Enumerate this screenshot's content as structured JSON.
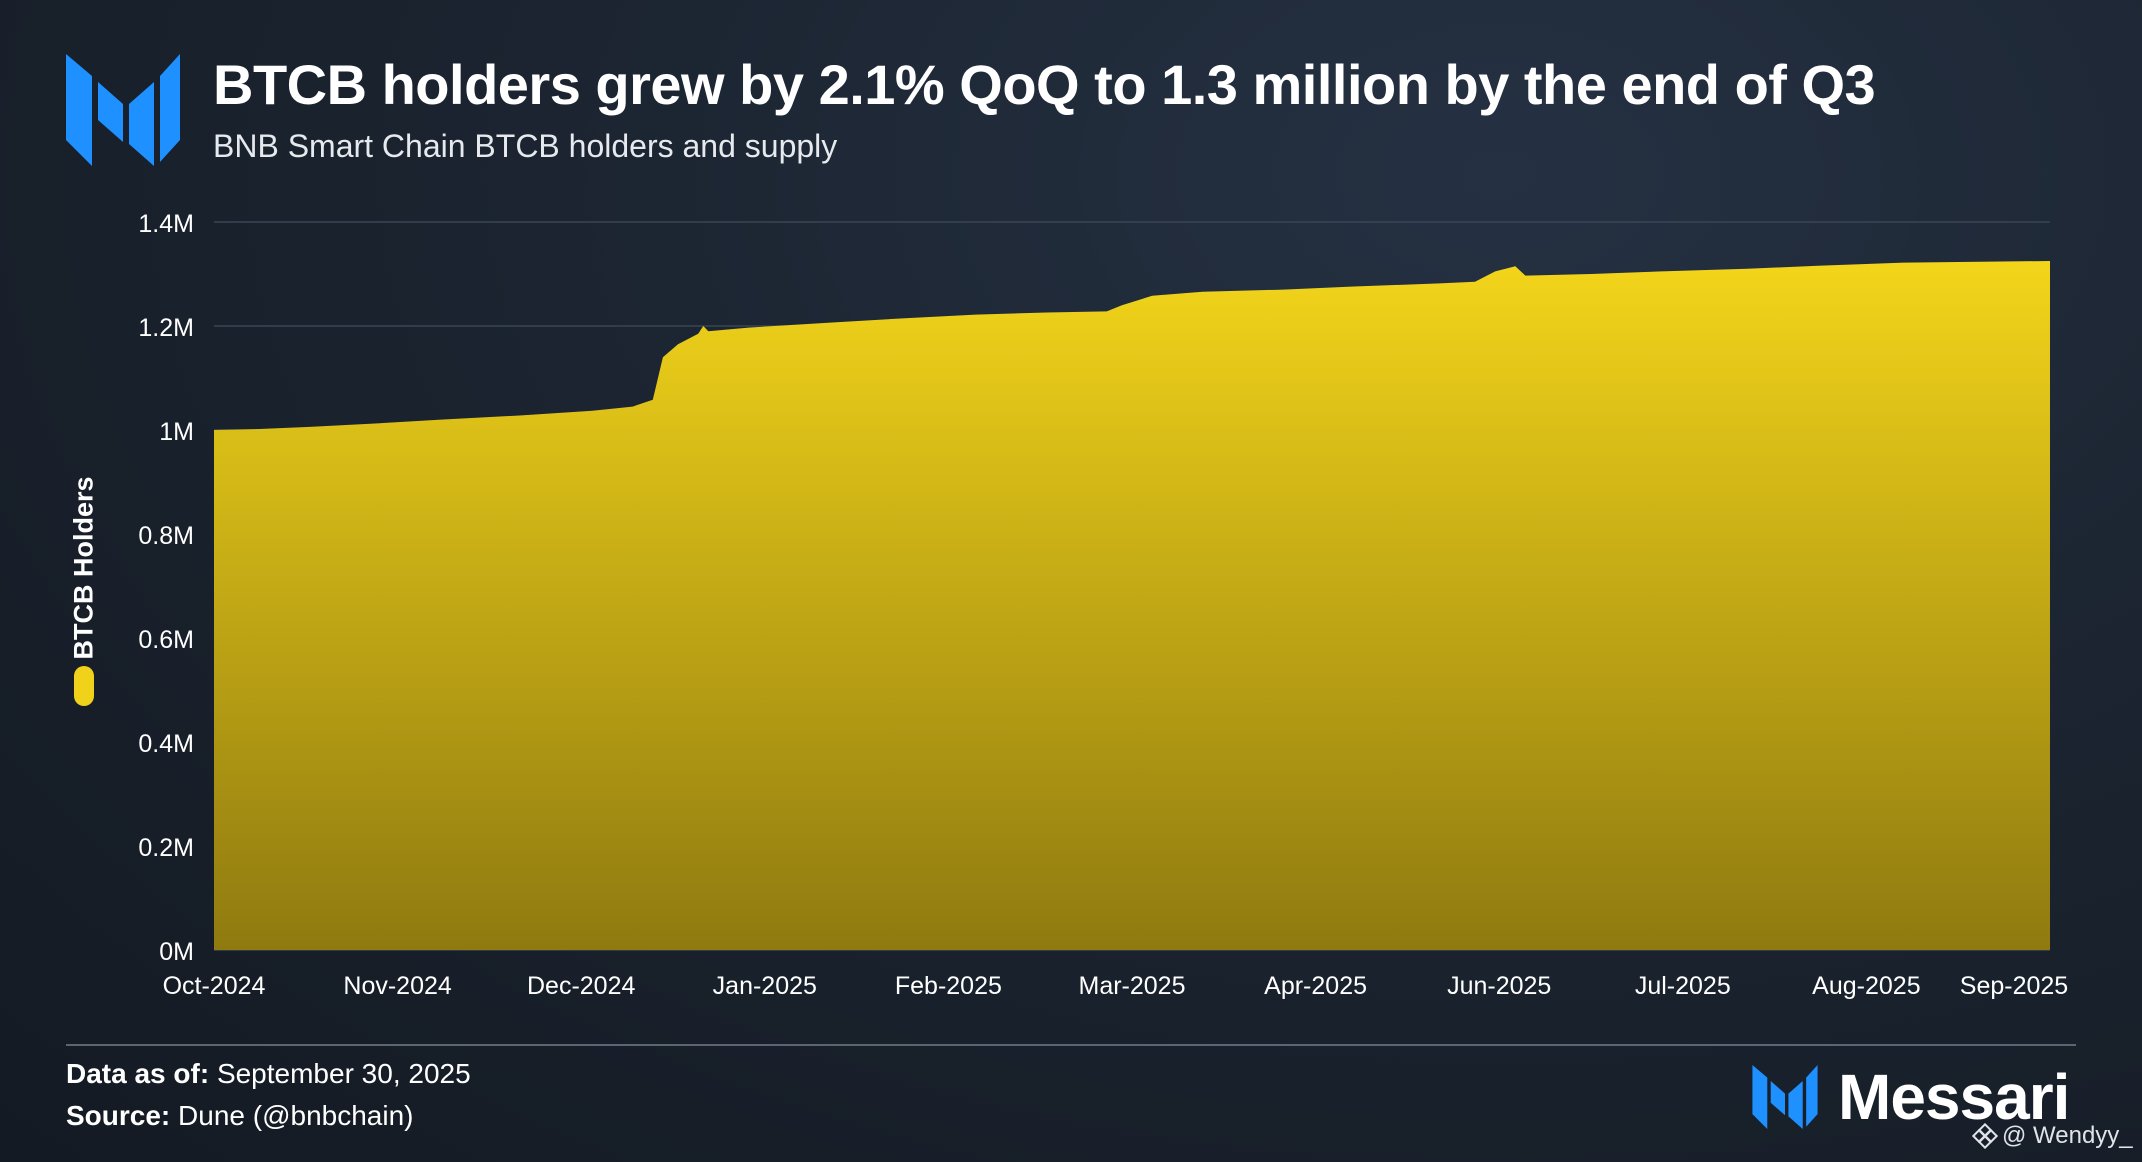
{
  "header": {
    "title": "BTCB holders grew by 2.1% QoQ to 1.3 million by the end of Q3",
    "subtitle": "BNB Smart Chain BTCB holders and supply"
  },
  "footer": {
    "data_as_of_label": "Data as of:",
    "data_as_of_value": "September 30, 2025",
    "source_label": "Source:",
    "source_value": "Dune (@bnbchain)"
  },
  "brand": {
    "wordmark": "Messari",
    "logo_icon": "messari-logo-icon",
    "accent": "#1e90ff"
  },
  "watermark": {
    "text": "@ Wendyy_",
    "icon": "binance-diamond-icon"
  },
  "chart_data": {
    "type": "area",
    "title": "BTCB holders grew by 2.1% QoQ to 1.3 million by the end of Q3",
    "subtitle": "BNB Smart Chain BTCB holders and supply",
    "ylabel": "BTCB Holders",
    "ylim": [
      0,
      1400000
    ],
    "y_ticks": [
      0,
      200000,
      400000,
      600000,
      800000,
      1000000,
      1200000,
      1400000
    ],
    "y_tick_labels": [
      "0M",
      "0.2M",
      "0.4M",
      "0.6M",
      "0.8M",
      "1M",
      "1.2M",
      "1.4M"
    ],
    "x_tick_labels": [
      "Oct-2024",
      "Nov-2024",
      "Dec-2024",
      "Jan-2025",
      "Feb-2025",
      "Mar-2025",
      "Apr-2025",
      "Jun-2025",
      "Jul-2025",
      "Aug-2025",
      "Sep-2025"
    ],
    "x_range": [
      "2024-10-01",
      "2025-09-30"
    ],
    "grid": true,
    "legend": "left-vertical",
    "fill_color_top": "#f3d51a",
    "fill_color_bottom": "#8f7a10",
    "series": [
      {
        "name": "BTCB Holders",
        "points": [
          [
            "2024-10-01",
            1000000
          ],
          [
            "2024-10-10",
            1002000
          ],
          [
            "2024-10-20",
            1006000
          ],
          [
            "2024-11-01",
            1012000
          ],
          [
            "2024-11-15",
            1020000
          ],
          [
            "2024-12-01",
            1028000
          ],
          [
            "2024-12-15",
            1037000
          ],
          [
            "2024-12-23",
            1045000
          ],
          [
            "2024-12-27",
            1058000
          ],
          [
            "2024-12-29",
            1140000
          ],
          [
            "2025-01-01",
            1165000
          ],
          [
            "2025-01-05",
            1185000
          ],
          [
            "2025-01-06",
            1200000
          ],
          [
            "2025-01-07",
            1190000
          ],
          [
            "2025-01-15",
            1197000
          ],
          [
            "2025-02-01",
            1207000
          ],
          [
            "2025-02-15",
            1215000
          ],
          [
            "2025-03-01",
            1222000
          ],
          [
            "2025-03-15",
            1226000
          ],
          [
            "2025-03-27",
            1228000
          ],
          [
            "2025-03-30",
            1240000
          ],
          [
            "2025-04-05",
            1258000
          ],
          [
            "2025-04-15",
            1266000
          ],
          [
            "2025-05-01",
            1270000
          ],
          [
            "2025-05-15",
            1276000
          ],
          [
            "2025-06-01",
            1282000
          ],
          [
            "2025-06-08",
            1285000
          ],
          [
            "2025-06-12",
            1305000
          ],
          [
            "2025-06-16",
            1315000
          ],
          [
            "2025-06-18",
            1297000
          ],
          [
            "2025-07-01",
            1300000
          ],
          [
            "2025-07-15",
            1305000
          ],
          [
            "2025-08-01",
            1310000
          ],
          [
            "2025-08-15",
            1316000
          ],
          [
            "2025-09-01",
            1322000
          ],
          [
            "2025-09-30",
            1325000
          ]
        ]
      }
    ]
  }
}
